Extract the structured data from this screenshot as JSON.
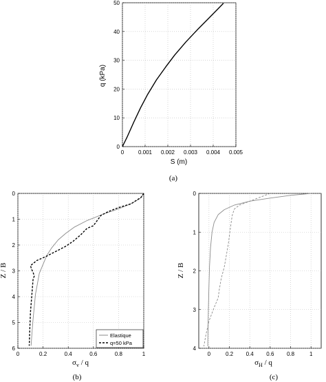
{
  "chart_data": [
    {
      "id": "a",
      "type": "line",
      "panel_label": "(a)",
      "xlabel": "S (m)",
      "ylabel": "q (kPa)",
      "xlim": [
        0,
        0.005
      ],
      "ylim": [
        0,
        50
      ],
      "xticks": [
        "0",
        "0.001",
        "0.002",
        "0.003",
        "0.004",
        "0.005"
      ],
      "yticks": [
        "0",
        "10",
        "20",
        "30",
        "40",
        "50"
      ],
      "grid": true,
      "series": [
        {
          "color": "#000000",
          "style": "solid",
          "x": [
            0,
            0.0002,
            0.0005,
            0.0008,
            0.0011,
            0.0015,
            0.0019,
            0.0023,
            0.0028,
            0.0033,
            0.0038,
            0.0042,
            0.00445
          ],
          "y": [
            0,
            3.2,
            8.5,
            13.5,
            18.0,
            23.2,
            27.6,
            31.8,
            36.4,
            40.6,
            44.6,
            47.8,
            49.8
          ]
        }
      ]
    },
    {
      "id": "b",
      "type": "line",
      "panel_label": "(b)",
      "xlabel": "σ",
      "xlabel_sub": "v",
      "xlabel_rest": " / q",
      "ylabel": "Z / B",
      "xlim": [
        0,
        1
      ],
      "ylim": [
        6,
        0
      ],
      "xticks": [
        "0",
        "0.2",
        "0.4",
        "0.6",
        "0.8",
        "1"
      ],
      "yticks": [
        "0",
        "1",
        "2",
        "3",
        "4",
        "5",
        "6"
      ],
      "grid": true,
      "legend_position": "bottom-right",
      "series": [
        {
          "name": "Elastique",
          "color": "#8a8a8a",
          "style": "solid",
          "x": [
            1.0,
            0.97,
            0.9,
            0.8,
            0.68,
            0.55,
            0.45,
            0.38,
            0.32,
            0.27,
            0.23,
            0.2,
            0.17,
            0.155,
            0.14,
            0.13,
            0.12,
            0.112,
            0.105
          ],
          "y": [
            0.0,
            0.2,
            0.4,
            0.6,
            0.8,
            1.05,
            1.3,
            1.55,
            1.8,
            2.1,
            2.4,
            2.75,
            3.1,
            3.5,
            3.9,
            4.4,
            4.9,
            5.4,
            5.9
          ]
        },
        {
          "name": "q=50 kPa",
          "color": "#000000",
          "style": "dashed",
          "x": [
            1.0,
            0.98,
            0.9,
            0.8,
            0.72,
            0.66,
            0.63,
            0.6,
            0.55,
            0.5,
            0.44,
            0.38,
            0.3,
            0.22,
            0.15,
            0.1,
            0.11,
            0.12,
            0.13,
            0.12,
            0.11,
            0.1,
            0.095,
            0.09
          ],
          "y": [
            0.0,
            0.15,
            0.4,
            0.55,
            0.7,
            0.85,
            1.05,
            1.25,
            1.35,
            1.6,
            1.85,
            2.05,
            2.25,
            2.45,
            2.6,
            2.8,
            2.95,
            3.05,
            3.2,
            3.35,
            4.0,
            4.6,
            5.2,
            5.9
          ]
        }
      ]
    },
    {
      "id": "c",
      "type": "line",
      "panel_label": "(c)",
      "xlabel": "σ",
      "xlabel_sub": "H",
      "xlabel_rest": " / q",
      "ylabel": "Z / B",
      "xlim": [
        -0.1,
        1.1
      ],
      "ylim": [
        4,
        0
      ],
      "xticks": [
        "0",
        "0.2",
        "0.4",
        "0.6",
        "0.8",
        "1"
      ],
      "yticks": [
        "0",
        "1",
        "2",
        "3",
        "4"
      ],
      "grid": true,
      "series": [
        {
          "color": "#8a8a8a",
          "style": "solid",
          "x": [
            1.0,
            0.8,
            0.6,
            0.4,
            0.25,
            0.15,
            0.09,
            0.05,
            0.03,
            0.015,
            0.005,
            0.0,
            -0.005,
            -0.01,
            -0.012
          ],
          "y": [
            0.0,
            0.05,
            0.12,
            0.2,
            0.3,
            0.42,
            0.55,
            0.75,
            1.0,
            1.4,
            1.9,
            2.4,
            2.9,
            3.5,
            3.95
          ]
        },
        {
          "color": "#8a8a8a",
          "style": "dashed",
          "x": [
            0.6,
            0.5,
            0.4,
            0.3,
            0.25,
            0.23,
            0.22,
            0.21,
            0.2,
            0.19,
            0.17,
            0.15,
            0.12,
            0.1,
            0.09,
            0.05,
            0.0,
            -0.03,
            -0.05
          ],
          "y": [
            0.0,
            0.1,
            0.2,
            0.3,
            0.4,
            0.55,
            0.7,
            0.9,
            1.1,
            1.3,
            1.6,
            1.9,
            2.2,
            2.5,
            2.7,
            2.95,
            3.3,
            3.65,
            3.95
          ]
        }
      ]
    }
  ]
}
